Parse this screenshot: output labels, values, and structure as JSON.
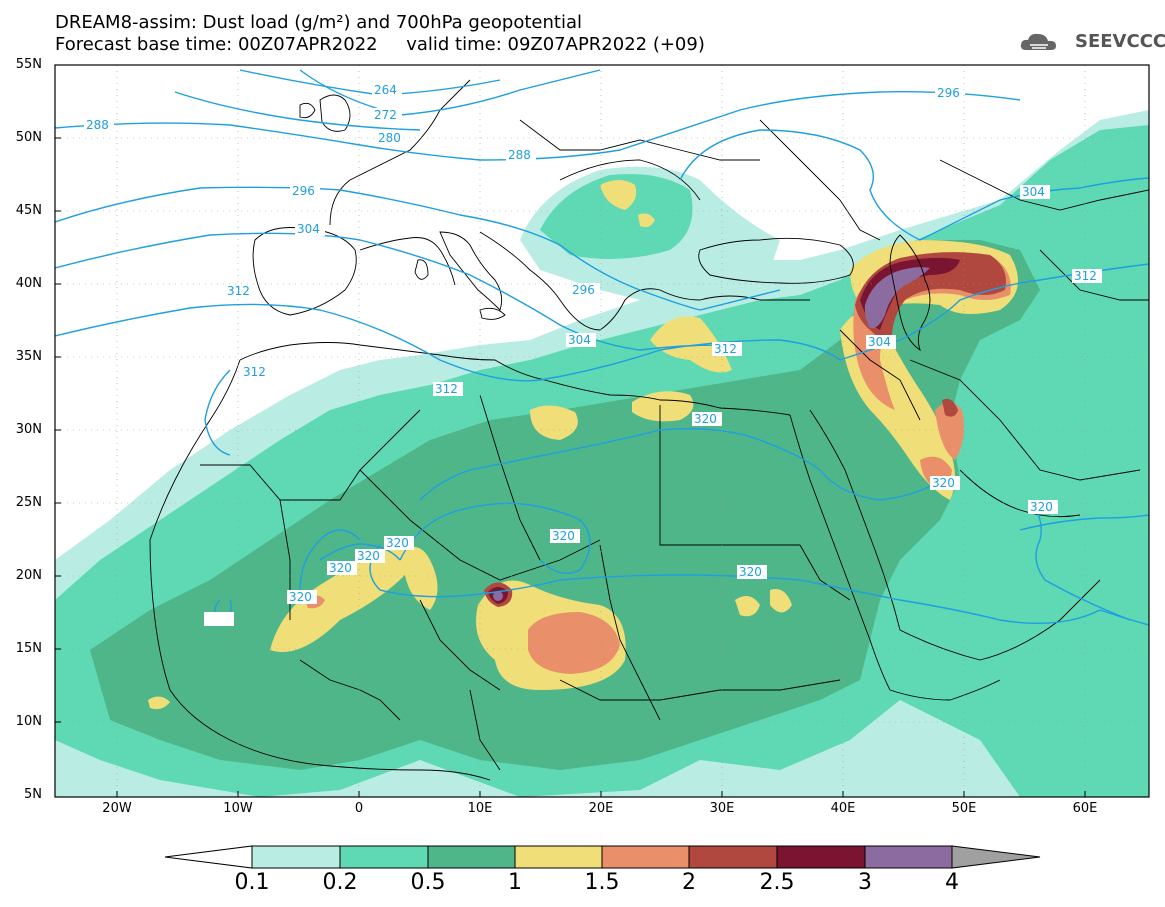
{
  "title": {
    "line1": "DREAM8-assim: Dust load (g/m²) and 700hPa geopotential",
    "line2": "Forecast base time: 00Z07APR2022     valid time: 09Z07APR2022 (+09)"
  },
  "logo": {
    "text": "SEEVCCC",
    "icon": "cloud-icon"
  },
  "axes": {
    "lat_labels": [
      "55N",
      "50N",
      "45N",
      "40N",
      "35N",
      "30N",
      "25N",
      "20N",
      "15N",
      "10N",
      "5N"
    ],
    "lon_labels": [
      "20W",
      "10W",
      "0",
      "10E",
      "20E",
      "30E",
      "40E",
      "50E",
      "60E"
    ]
  },
  "colorbar": {
    "labels": [
      "0.1",
      "0.2",
      "0.5",
      "1",
      "1.5",
      "2",
      "2.5",
      "3",
      "4"
    ],
    "colors": [
      "#b9ede4",
      "#5ed9b3",
      "#4fb68a",
      "#f0de78",
      "#e9906a",
      "#b0483f",
      "#7a1431",
      "#8c6ba0",
      "#a0a0a0"
    ]
  },
  "contours": {
    "color": "#1e9fe0",
    "labels": [
      "264",
      "272",
      "280",
      "288",
      "288",
      "296",
      "296",
      "296",
      "304",
      "304",
      "304",
      "304",
      "312",
      "312",
      "312",
      "312",
      "312",
      "320",
      "320",
      "320",
      "320",
      "320",
      "320",
      "320",
      "320",
      "320"
    ]
  }
}
